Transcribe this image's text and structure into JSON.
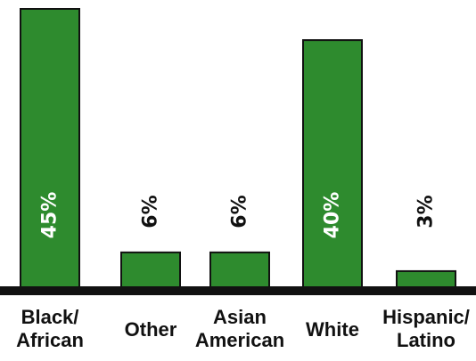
{
  "chart_data": {
    "type": "bar",
    "categories": [
      [
        "Black/",
        "African"
      ],
      [
        "Other"
      ],
      [
        "Asian",
        "American"
      ],
      [
        "White"
      ],
      [
        "Hispanic/",
        "Latino"
      ]
    ],
    "values": [
      45,
      6,
      6,
      40,
      3
    ],
    "value_labels": [
      "45%",
      "6%",
      "6%",
      "40%",
      "3%"
    ],
    "title": "",
    "xlabel": "",
    "ylabel": "",
    "ylim": [
      0,
      45
    ],
    "grid": false,
    "bar_color": "#2e8b2e",
    "bar_outline_color": "#111111",
    "axis_color": "#111111",
    "label_inside_color": "#ffffff",
    "label_outside_color": "#111111"
  }
}
